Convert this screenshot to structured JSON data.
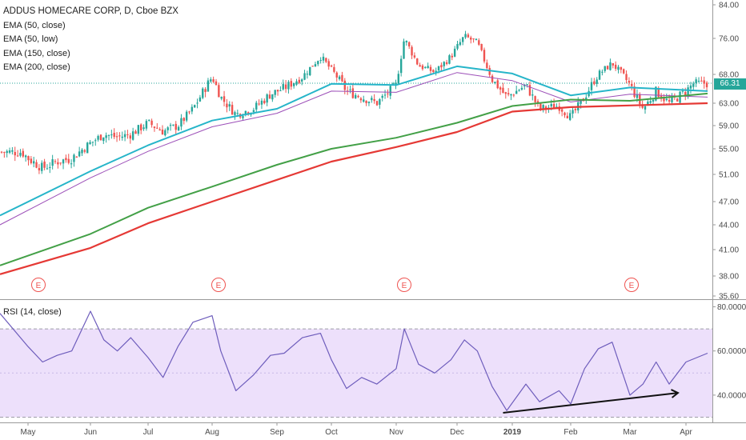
{
  "legend": {
    "title": "ADDUS HOMECARE CORP, D, Cboe BZX",
    "items": [
      "EMA (50, close)",
      "EMA (50, low)",
      "EMA (150, close)",
      "EMA (200, close)"
    ]
  },
  "rsi_legend": "RSI (14, close)",
  "last_price_label": "66.31",
  "earnings_marker": "E",
  "colors": {
    "ema50_close": "#26b5c9",
    "ema50_low": "#9c4fb8",
    "ema150": "#43a047",
    "ema200": "#e53935",
    "up": "#26a69a",
    "down": "#ef5350",
    "rsi_line": "#6e5dbc",
    "rsi_band": "#ede0fb",
    "price_line": "#26a69a"
  },
  "chart_data": [
    {
      "type": "candlestick",
      "title": "ADDUS HOMECARE CORP, D, Cboe BZX",
      "y_axis_ticks": [
        "84.00",
        "76.00",
        "68.00",
        "66.31",
        "63.00",
        "59.00",
        "55.00",
        "51.00",
        "47.00",
        "44.00",
        "41.00",
        "38.00",
        "35.60"
      ],
      "x_axis_ticks": [
        "May",
        "Jun",
        "Jul",
        "Aug",
        "Sep",
        "Oct",
        "Nov",
        "Dec",
        "2019",
        "Feb",
        "Mar",
        "Apr"
      ],
      "ylim": [
        35.6,
        84.0
      ],
      "last_price": 66.31,
      "earnings_dates": [
        "May",
        "Aug",
        "Nov",
        "Mar"
      ],
      "close_path": [
        [
          "Apr 26",
          54.5
        ],
        [
          "May 1",
          53.5
        ],
        [
          "May 8",
          52.0
        ],
        [
          "May 15",
          53.0
        ],
        [
          "May 22",
          53.5
        ],
        [
          "Jun 1",
          56.0
        ],
        [
          "Jun 8",
          57.5
        ],
        [
          "Jun 15",
          57.0
        ],
        [
          "Jun 22",
          57.5
        ],
        [
          "Jul 1",
          59.5
        ],
        [
          "Jul 8",
          58.0
        ],
        [
          "Jul 15",
          59.0
        ],
        [
          "Jul 22",
          62.0
        ],
        [
          "Aug 1",
          67.5
        ],
        [
          "Aug 5",
          64.0
        ],
        [
          "Aug 12",
          61.0
        ],
        [
          "Aug 20",
          62.0
        ],
        [
          "Aug 28",
          64.5
        ],
        [
          "Sep 5",
          65.5
        ],
        [
          "Sep 15",
          67.5
        ],
        [
          "Sep 25",
          72.0
        ],
        [
          "Oct 1",
          69.0
        ],
        [
          "Oct 8",
          65.0
        ],
        [
          "Oct 15",
          64.0
        ],
        [
          "Oct 22",
          63.0
        ],
        [
          "Nov 1",
          66.0
        ],
        [
          "Nov 5",
          76.0
        ],
        [
          "Nov 12",
          70.0
        ],
        [
          "Nov 20",
          68.5
        ],
        [
          "Nov 28",
          72.0
        ],
        [
          "Dec 5",
          76.5
        ],
        [
          "Dec 12",
          75.0
        ],
        [
          "Dec 20",
          67.0
        ],
        [
          "Dec 28",
          64.0
        ],
        [
          "Jan 8",
          66.0
        ],
        [
          "Jan 15",
          62.0
        ],
        [
          "Jan 25",
          62.5
        ],
        [
          "Feb 1",
          60.5
        ],
        [
          "Feb 8",
          64.0
        ],
        [
          "Feb 15",
          68.0
        ],
        [
          "Feb 22",
          70.5
        ],
        [
          "Mar 1",
          66.0
        ],
        [
          "Mar 8",
          62.0
        ],
        [
          "Mar 15",
          65.0
        ],
        [
          "Mar 22",
          63.0
        ],
        [
          "Apr 1",
          65.0
        ],
        [
          "Apr 5",
          66.3
        ]
      ],
      "series": [
        {
          "name": "EMA (50, close)",
          "points": [
            [
              "Apr 26",
              45.2
            ],
            [
              "Jun 1",
              51.5
            ],
            [
              "Jul 1",
              55.6
            ],
            [
              "Aug 1",
              59.9
            ],
            [
              "Sep 1",
              62.0
            ],
            [
              "Oct 1",
              66.2
            ],
            [
              "Nov 1",
              66.0
            ],
            [
              "Dec 1",
              69.8
            ],
            [
              "Jan 1",
              68.2
            ],
            [
              "Feb 1",
              64.3
            ],
            [
              "Mar 1",
              65.6
            ],
            [
              "Apr 8",
              65.0
            ]
          ]
        },
        {
          "name": "EMA (50, low)",
          "points": [
            [
              "Apr 26",
              44.0
            ],
            [
              "Jun 1",
              50.5
            ],
            [
              "Jul 1",
              54.6
            ],
            [
              "Aug 1",
              58.8
            ],
            [
              "Sep 1",
              61.2
            ],
            [
              "Oct 1",
              65.0
            ],
            [
              "Nov 1",
              64.8
            ],
            [
              "Dec 1",
              68.4
            ],
            [
              "Jan 1",
              66.8
            ],
            [
              "Feb 1",
              63.2
            ],
            [
              "Mar 1",
              64.5
            ],
            [
              "Apr 8",
              64.0
            ]
          ]
        },
        {
          "name": "EMA (150, close)",
          "points": [
            [
              "Apr 26",
              39.2
            ],
            [
              "Jun 1",
              42.9
            ],
            [
              "Jul 1",
              46.2
            ],
            [
              "Aug 1",
              49.2
            ],
            [
              "Sep 1",
              52.5
            ],
            [
              "Oct 1",
              55.0
            ],
            [
              "Nov 1",
              56.9
            ],
            [
              "Dec 1",
              59.5
            ],
            [
              "Jan 1",
              62.5
            ],
            [
              "Feb 1",
              63.6
            ],
            [
              "Mar 1",
              63.4
            ],
            [
              "Apr 8",
              64.6
            ]
          ]
        },
        {
          "name": "EMA (200, close)",
          "points": [
            [
              "Apr 26",
              38.2
            ],
            [
              "Jun 1",
              41.2
            ],
            [
              "Jul 1",
              44.2
            ],
            [
              "Aug 1",
              47.0
            ],
            [
              "Sep 1",
              50.2
            ],
            [
              "Oct 1",
              53.0
            ],
            [
              "Nov 1",
              55.3
            ],
            [
              "Dec 1",
              57.9
            ],
            [
              "Jan 1",
              61.5
            ],
            [
              "Feb 1",
              62.3
            ],
            [
              "Mar 1",
              62.6
            ],
            [
              "Apr 8",
              63.0
            ]
          ]
        }
      ]
    },
    {
      "type": "line",
      "title": "RSI (14, close)",
      "y_axis_ticks": [
        "80.0000",
        "60.0000",
        "40.0000"
      ],
      "ylim": [
        28,
        82
      ],
      "band": [
        30,
        70
      ],
      "series": [
        {
          "name": "RSI (14, close)",
          "points": [
            [
              "Apr 26",
              77
            ],
            [
              "May 1",
              62
            ],
            [
              "May 8",
              55
            ],
            [
              "May 15",
              58
            ],
            [
              "May 22",
              60
            ],
            [
              "Jun 1",
              78
            ],
            [
              "Jun 8",
              65
            ],
            [
              "Jun 15",
              60
            ],
            [
              "Jun 22",
              66
            ],
            [
              "Jul 1",
              57
            ],
            [
              "Jul 8",
              48
            ],
            [
              "Jul 15",
              62
            ],
            [
              "Jul 22",
              73
            ],
            [
              "Aug 1",
              76
            ],
            [
              "Aug 5",
              60
            ],
            [
              "Aug 12",
              42
            ],
            [
              "Aug 20",
              49
            ],
            [
              "Aug 28",
              58
            ],
            [
              "Sep 5",
              59
            ],
            [
              "Sep 15",
              66
            ],
            [
              "Sep 25",
              68
            ],
            [
              "Oct 1",
              56
            ],
            [
              "Oct 8",
              43
            ],
            [
              "Oct 15",
              48
            ],
            [
              "Oct 22",
              45
            ],
            [
              "Nov 1",
              52
            ],
            [
              "Nov 5",
              70
            ],
            [
              "Nov 12",
              54
            ],
            [
              "Nov 20",
              50
            ],
            [
              "Nov 28",
              56
            ],
            [
              "Dec 5",
              65
            ],
            [
              "Dec 12",
              60
            ],
            [
              "Dec 20",
              44
            ],
            [
              "Dec 28",
              33
            ],
            [
              "Jan 8",
              45
            ],
            [
              "Jan 15",
              37
            ],
            [
              "Jan 25",
              42
            ],
            [
              "Feb 1",
              36
            ],
            [
              "Feb 8",
              52
            ],
            [
              "Feb 15",
              61
            ],
            [
              "Feb 22",
              64
            ],
            [
              "Mar 1",
              40
            ],
            [
              "Mar 8",
              45
            ],
            [
              "Mar 15",
              55
            ],
            [
              "Mar 22",
              45
            ],
            [
              "Apr 1",
              55
            ],
            [
              "Apr 8",
              59
            ]
          ]
        }
      ],
      "annotations": [
        {
          "type": "arrow",
          "from": [
            "Dec 26",
            32
          ],
          "to": [
            "Apr 1",
            41
          ]
        }
      ]
    }
  ]
}
